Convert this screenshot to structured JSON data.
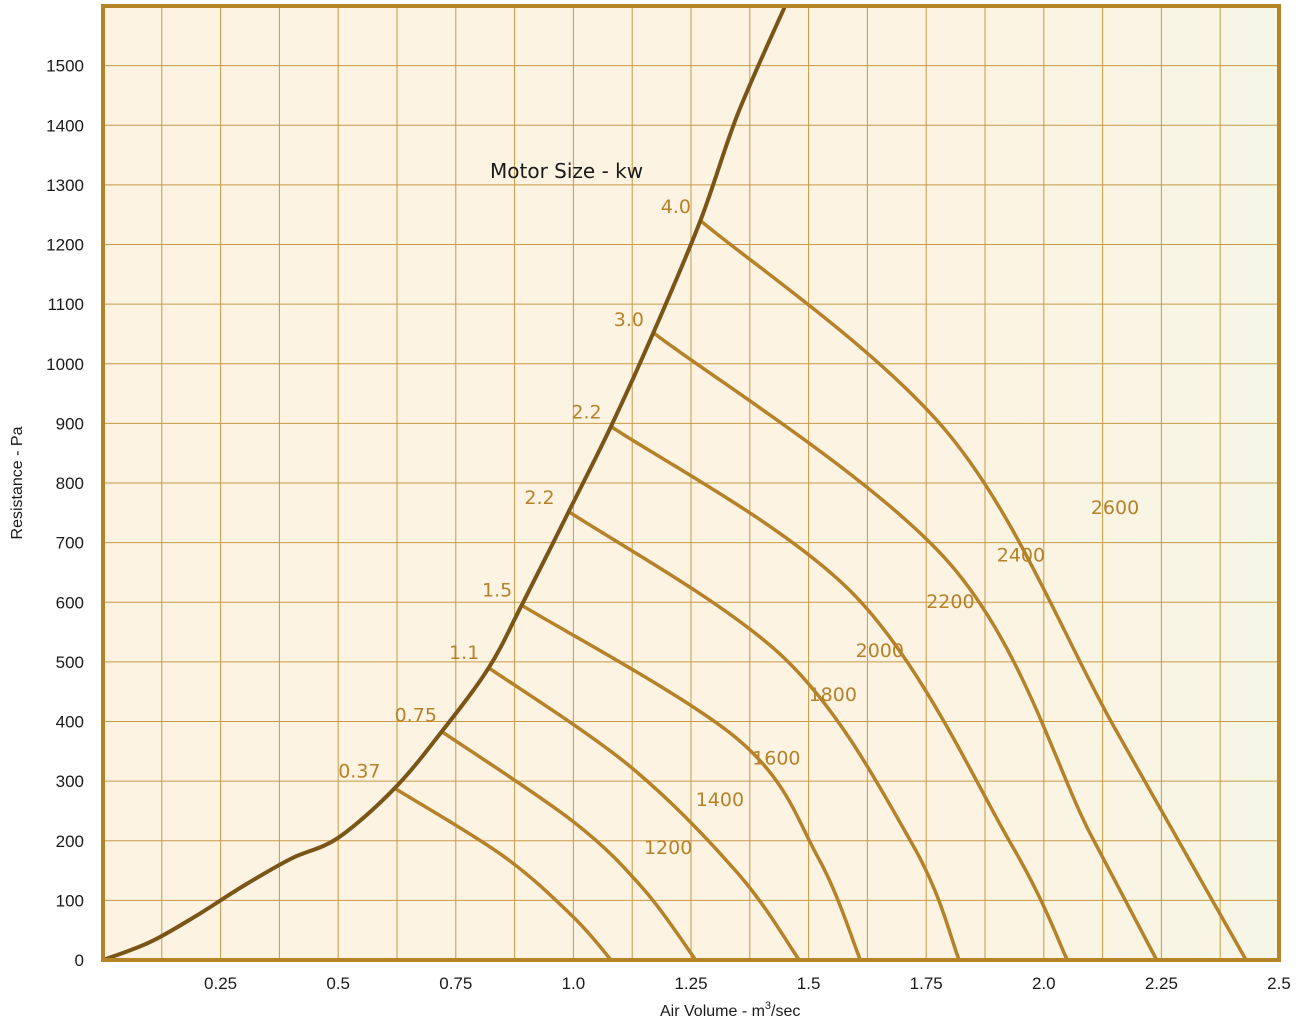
{
  "colors": {
    "border": "#b58426",
    "grid": "#c79a45",
    "envelope": "#7a5518",
    "curve": "#b5822a",
    "label": "#b5822a",
    "bg_left": "#fdf3e2",
    "bg_right": "#f6f6e6"
  },
  "chart_data": {
    "type": "line",
    "title": "",
    "xlabel": "Air Volume - m",
    "xlabel_superscript": "3",
    "xlabel_suffix": "/sec",
    "ylabel": "Resistance - Pa",
    "xlim": [
      0,
      2.5
    ],
    "ylim": [
      0,
      1600
    ],
    "grid": true,
    "minor_grid_x_step": 0.125,
    "xticks": [
      {
        "v": 0.25,
        "label": "0.25"
      },
      {
        "v": 0.5,
        "label": "0.5"
      },
      {
        "v": 0.75,
        "label": "0.75"
      },
      {
        "v": 1.0,
        "label": "1.0"
      },
      {
        "v": 1.25,
        "label": "1.25"
      },
      {
        "v": 1.5,
        "label": "1.5"
      },
      {
        "v": 1.75,
        "label": "1.75"
      },
      {
        "v": 2.0,
        "label": "2.0"
      },
      {
        "v": 2.25,
        "label": "2.25"
      },
      {
        "v": 2.5,
        "label": "2.5"
      }
    ],
    "yticks": [
      {
        "v": 0,
        "label": "0"
      },
      {
        "v": 100,
        "label": "100"
      },
      {
        "v": 200,
        "label": "200"
      },
      {
        "v": 300,
        "label": "300"
      },
      {
        "v": 400,
        "label": "400"
      },
      {
        "v": 500,
        "label": "500"
      },
      {
        "v": 600,
        "label": "600"
      },
      {
        "v": 700,
        "label": "700"
      },
      {
        "v": 800,
        "label": "800"
      },
      {
        "v": 900,
        "label": "900"
      },
      {
        "v": 1000,
        "label": "1000"
      },
      {
        "v": 1100,
        "label": "1100"
      },
      {
        "v": 1200,
        "label": "1200"
      },
      {
        "v": 1300,
        "label": "1300"
      },
      {
        "v": 1400,
        "label": "1400"
      },
      {
        "v": 1500,
        "label": "1500"
      }
    ],
    "motor_size_title": "Motor Size - kw",
    "envelope": [
      [
        0,
        0
      ],
      [
        0.1,
        30
      ],
      [
        0.2,
        75
      ],
      [
        0.3,
        125
      ],
      [
        0.4,
        170
      ],
      [
        0.5,
        205
      ],
      [
        0.62,
        288
      ],
      [
        0.72,
        383
      ],
      [
        0.82,
        490
      ],
      [
        0.89,
        595
      ],
      [
        0.99,
        752
      ],
      [
        1.08,
        895
      ],
      [
        1.17,
        1052
      ],
      [
        1.27,
        1240
      ],
      [
        1.35,
        1420
      ],
      [
        1.45,
        1600
      ]
    ],
    "series": [
      {
        "speed": "1200",
        "motor": "0.37",
        "points": [
          [
            0.62,
            288
          ],
          [
            0.85,
            175
          ],
          [
            1.0,
            72
          ],
          [
            1.08,
            0
          ]
        ]
      },
      {
        "speed": "1400",
        "motor": "0.75",
        "points": [
          [
            0.72,
            383
          ],
          [
            1.0,
            232
          ],
          [
            1.15,
            118
          ],
          [
            1.26,
            0
          ]
        ]
      },
      {
        "speed": "1600",
        "motor": "1.1",
        "points": [
          [
            0.82,
            490
          ],
          [
            1.12,
            325
          ],
          [
            1.35,
            145
          ],
          [
            1.48,
            0
          ]
        ]
      },
      {
        "speed": "1800",
        "motor": "1.5",
        "points": [
          [
            0.89,
            595
          ],
          [
            1.35,
            370
          ],
          [
            1.52,
            172
          ],
          [
            1.61,
            0
          ]
        ]
      },
      {
        "speed": "2000",
        "motor": "2.2",
        "points": [
          [
            0.99,
            752
          ],
          [
            1.45,
            505
          ],
          [
            1.72,
            195
          ],
          [
            1.82,
            0
          ]
        ]
      },
      {
        "speed": "2200",
        "motor": "2.2",
        "points": [
          [
            1.08,
            895
          ],
          [
            1.6,
            610
          ],
          [
            1.93,
            195
          ],
          [
            2.05,
            0
          ]
        ]
      },
      {
        "speed": "2400",
        "motor": "3.0",
        "points": [
          [
            1.17,
            1052
          ],
          [
            1.8,
            665
          ],
          [
            2.1,
            210
          ],
          [
            2.24,
            0
          ]
        ]
      },
      {
        "speed": "2600",
        "motor": "4.0",
        "points": [
          [
            1.27,
            1240
          ],
          [
            1.8,
            880
          ],
          [
            2.15,
            390
          ],
          [
            2.43,
            0
          ]
        ]
      }
    ],
    "speed_label_positions": [
      [
        1.15,
        178
      ],
      [
        1.26,
        258
      ],
      [
        1.38,
        328
      ],
      [
        1.5,
        434
      ],
      [
        1.6,
        508
      ],
      [
        1.75,
        590
      ],
      [
        1.9,
        668
      ],
      [
        2.1,
        748
      ]
    ],
    "motor_label_positions": [
      [
        0.59,
        306
      ],
      [
        0.71,
        400
      ],
      [
        0.8,
        505
      ],
      [
        0.87,
        610
      ],
      [
        0.96,
        765
      ],
      [
        1.06,
        908
      ],
      [
        1.15,
        1063
      ],
      [
        1.25,
        1253
      ]
    ]
  }
}
